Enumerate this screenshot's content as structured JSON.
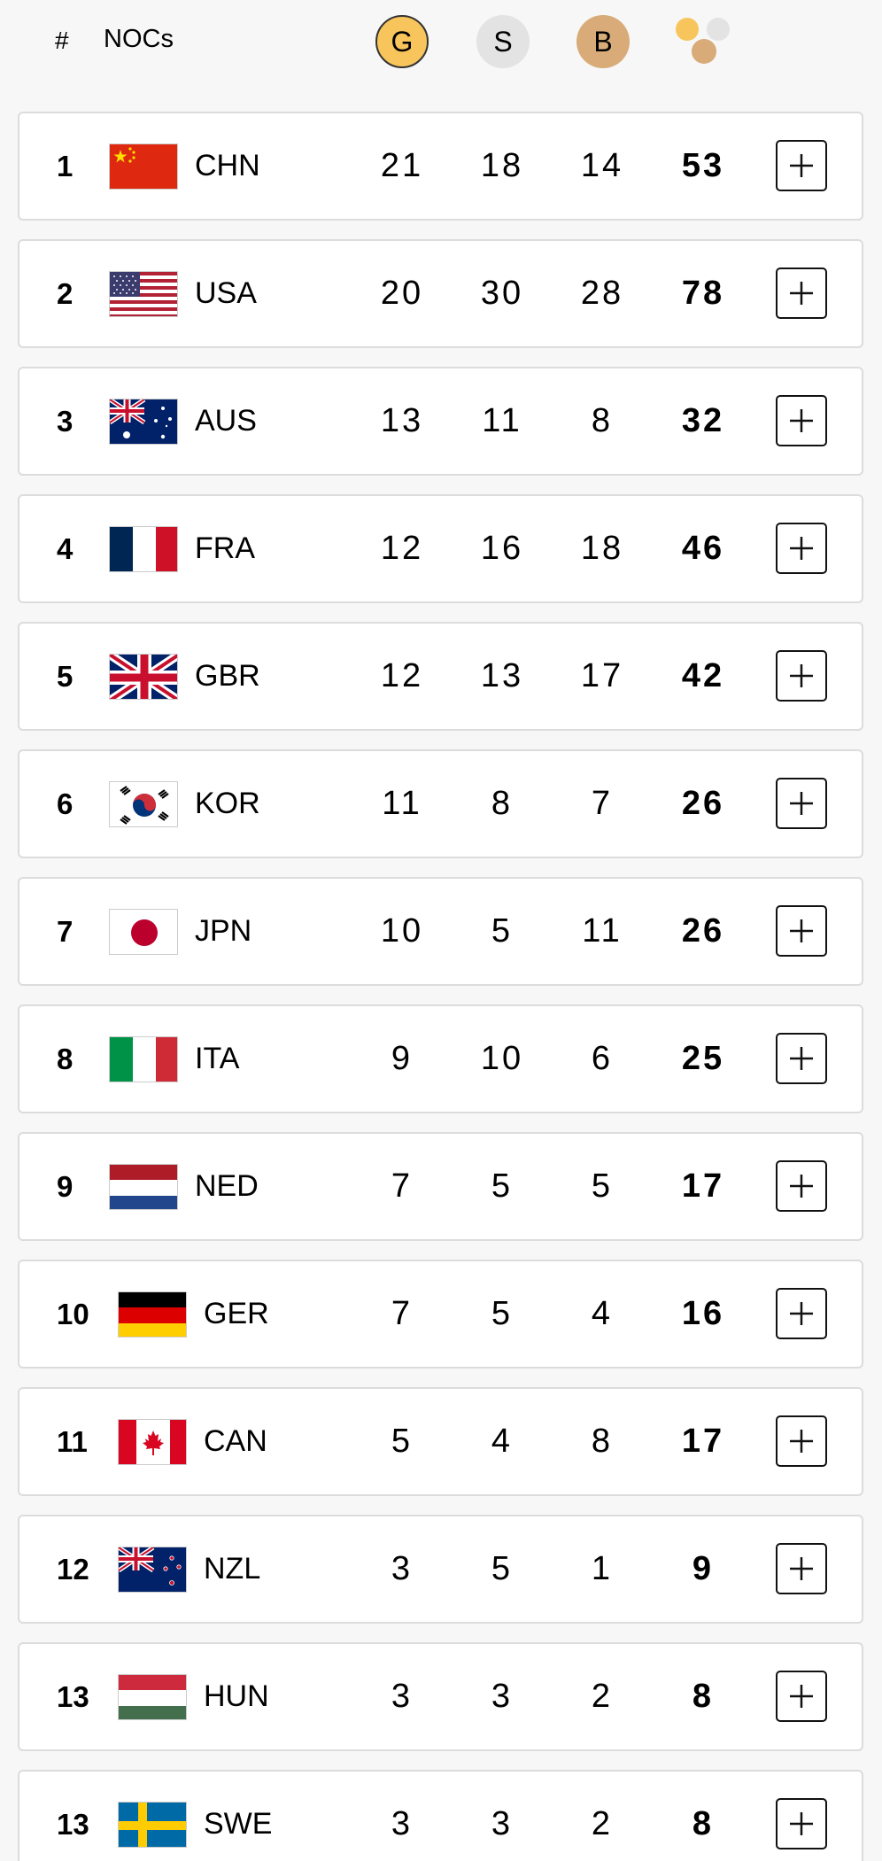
{
  "header": {
    "rank_label": "#",
    "nocs_label": "NOCs",
    "gold_label": "G",
    "silver_label": "S",
    "bronze_label": "B"
  },
  "colors": {
    "gold": "#f7c55b",
    "silver": "#e3e3e3",
    "bronze": "#d8ab78"
  },
  "rows": [
    {
      "rank": "1",
      "noc": "CHN",
      "gold": "21",
      "silver": "18",
      "bronze": "14",
      "total": "53",
      "flag_icon": "china-flag-icon"
    },
    {
      "rank": "2",
      "noc": "USA",
      "gold": "20",
      "silver": "30",
      "bronze": "28",
      "total": "78",
      "flag_icon": "usa-flag-icon"
    },
    {
      "rank": "3",
      "noc": "AUS",
      "gold": "13",
      "silver": "11",
      "bronze": "8",
      "total": "32",
      "flag_icon": "australia-flag-icon"
    },
    {
      "rank": "4",
      "noc": "FRA",
      "gold": "12",
      "silver": "16",
      "bronze": "18",
      "total": "46",
      "flag_icon": "france-flag-icon"
    },
    {
      "rank": "5",
      "noc": "GBR",
      "gold": "12",
      "silver": "13",
      "bronze": "17",
      "total": "42",
      "flag_icon": "uk-flag-icon"
    },
    {
      "rank": "6",
      "noc": "KOR",
      "gold": "11",
      "silver": "8",
      "bronze": "7",
      "total": "26",
      "flag_icon": "korea-flag-icon"
    },
    {
      "rank": "7",
      "noc": "JPN",
      "gold": "10",
      "silver": "5",
      "bronze": "11",
      "total": "26",
      "flag_icon": "japan-flag-icon"
    },
    {
      "rank": "8",
      "noc": "ITA",
      "gold": "9",
      "silver": "10",
      "bronze": "6",
      "total": "25",
      "flag_icon": "italy-flag-icon"
    },
    {
      "rank": "9",
      "noc": "NED",
      "gold": "7",
      "silver": "5",
      "bronze": "5",
      "total": "17",
      "flag_icon": "netherlands-flag-icon"
    },
    {
      "rank": "10",
      "noc": "GER",
      "gold": "7",
      "silver": "5",
      "bronze": "4",
      "total": "16",
      "flag_icon": "germany-flag-icon"
    },
    {
      "rank": "11",
      "noc": "CAN",
      "gold": "5",
      "silver": "4",
      "bronze": "8",
      "total": "17",
      "flag_icon": "canada-flag-icon"
    },
    {
      "rank": "12",
      "noc": "NZL",
      "gold": "3",
      "silver": "5",
      "bronze": "1",
      "total": "9",
      "flag_icon": "new-zealand-flag-icon"
    },
    {
      "rank": "13",
      "noc": "HUN",
      "gold": "3",
      "silver": "3",
      "bronze": "2",
      "total": "8",
      "flag_icon": "hungary-flag-icon"
    },
    {
      "rank": "13",
      "noc": "SWE",
      "gold": "3",
      "silver": "3",
      "bronze": "2",
      "total": "8",
      "flag_icon": "sweden-flag-icon"
    }
  ]
}
